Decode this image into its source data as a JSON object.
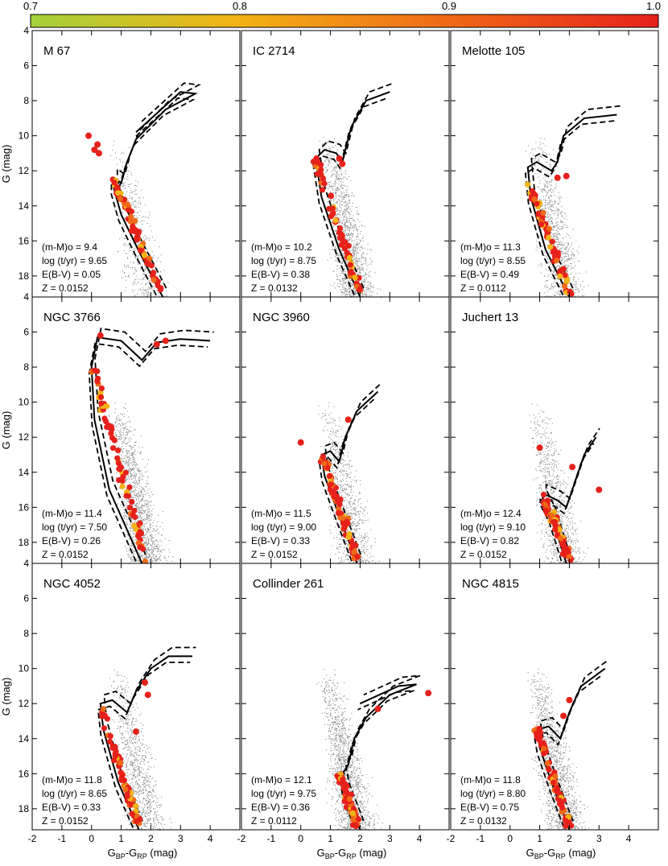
{
  "colorbar": {
    "min_label": "0.7",
    "tick_labels": [
      "0.7",
      "0.8",
      "0.9",
      "1.0"
    ],
    "tick_values": [
      0.7,
      0.8,
      0.9,
      1.0
    ],
    "range": [
      0.7,
      1.0
    ],
    "colors": [
      "#a4d13a",
      "#f2b316",
      "#ef6a17",
      "#e6211b"
    ]
  },
  "axes": {
    "xlabel": "G_BP-G_RP (mag)",
    "xlabel_main": "G",
    "xlabel_sub1": "BP",
    "xlabel_dash": "-G",
    "xlabel_sub2": "RP",
    "xlabel_unit": " (mag)",
    "ylabel": "G (mag)",
    "xlim": [
      -2,
      5
    ],
    "ylim": [
      19.2,
      4
    ],
    "xticks": [
      -2,
      -1,
      0,
      1,
      2,
      3,
      4
    ],
    "yticks": [
      4,
      6,
      8,
      10,
      12,
      14,
      16,
      18
    ]
  },
  "style": {
    "field_color": "#8a8a8a",
    "member_color": "#e6211b",
    "isochrone_color": "#000000"
  },
  "chart_data": [
    {
      "type": "scatter",
      "title": "M 67",
      "dm_label": "(m-M)o = 9.4",
      "age_label": "log (t/yr) = 9.65",
      "ebv_label": "E(B-V) = 0.05",
      "z_label": "Z = 0.0152",
      "dm": 9.4,
      "logt": 9.65,
      "ebv": 0.05,
      "z": 0.0152,
      "isochrone": [
        [
          2.4,
          19.2
        ],
        [
          1.6,
          16.6
        ],
        [
          1.0,
          14.5
        ],
        [
          0.75,
          13.0
        ],
        [
          0.75,
          12.4
        ],
        [
          1.0,
          12.7
        ],
        [
          1.2,
          11.5
        ],
        [
          1.5,
          10.2
        ],
        [
          2.5,
          8.5
        ],
        [
          3.5,
          7.6
        ],
        [
          3.0,
          7.5
        ],
        [
          1.5,
          9.8
        ]
      ],
      "members_ms": [
        [
          0.75,
          12.5
        ],
        [
          2.3,
          18.8
        ]
      ],
      "members_extra": [
        [
          -0.1,
          10.0
        ],
        [
          0.2,
          10.5
        ],
        [
          0.25,
          11.0
        ],
        [
          0.1,
          10.8
        ]
      ],
      "field_density": "low"
    },
    {
      "type": "scatter",
      "title": "IC 2714",
      "dm_label": "(m-M)o = 10.2",
      "age_label": "log (t/yr) = 8.75",
      "ebv_label": "E(B-V) = 0.38",
      "z_label": "Z = 0.0132",
      "dm": 10.2,
      "logt": 8.75,
      "ebv": 0.38,
      "z": 0.0132,
      "isochrone": [
        [
          2.0,
          19.2
        ],
        [
          1.3,
          16.5
        ],
        [
          0.7,
          13.5
        ],
        [
          0.5,
          11.3
        ],
        [
          0.8,
          10.8
        ],
        [
          1.2,
          11.0
        ],
        [
          1.4,
          11.5
        ],
        [
          1.7,
          9.5
        ],
        [
          2.2,
          8.0
        ],
        [
          3.0,
          7.5
        ]
      ],
      "members_ms": [
        [
          0.5,
          11.3
        ],
        [
          2.0,
          19.0
        ]
      ],
      "members_extra": [
        [
          1.3,
          11.3
        ],
        [
          1.4,
          11.6
        ]
      ],
      "field_density": "high"
    },
    {
      "type": "scatter",
      "title": "Melotte 105",
      "dm_label": "(m-M)o = 11.3",
      "age_label": "log (t/yr) = 8.55",
      "ebv_label": "E(B-V) = 0.49",
      "z_label": "Z = 0.0112",
      "dm": 11.3,
      "logt": 8.55,
      "ebv": 0.49,
      "z": 0.0112,
      "isochrone": [
        [
          2.0,
          19.2
        ],
        [
          1.2,
          16.5
        ],
        [
          0.7,
          13.5
        ],
        [
          0.6,
          11.8
        ],
        [
          0.9,
          11.5
        ],
        [
          1.4,
          12.0
        ],
        [
          1.6,
          11.5
        ],
        [
          1.8,
          10.0
        ],
        [
          2.5,
          9.0
        ],
        [
          3.6,
          8.8
        ]
      ],
      "members_ms": [
        [
          0.6,
          12.6
        ],
        [
          2.0,
          19.0
        ]
      ],
      "members_extra": [
        [
          1.9,
          12.3
        ],
        [
          1.6,
          12.4
        ]
      ],
      "field_density": "medium"
    },
    {
      "type": "scatter",
      "title": "NGC 3766",
      "dm_label": "(m-M)o = 11.4",
      "age_label": "log (t/yr) = 7.50",
      "ebv_label": "E(B-V) = 0.26",
      "z_label": "Z = 0.0152",
      "dm": 11.4,
      "logt": 7.5,
      "ebv": 0.26,
      "z": 0.0152,
      "isochrone": [
        [
          1.7,
          19.2
        ],
        [
          0.6,
          15.0
        ],
        [
          0.1,
          11.0
        ],
        [
          0.0,
          8.0
        ],
        [
          0.2,
          6.3
        ],
        [
          1.0,
          6.5
        ],
        [
          1.7,
          7.6
        ],
        [
          2.2,
          6.6
        ],
        [
          3.0,
          6.4
        ],
        [
          4.0,
          6.5
        ]
      ],
      "members_ms": [
        [
          0.05,
          8.0
        ],
        [
          1.8,
          19.0
        ]
      ],
      "members_extra": [
        [
          0.3,
          6.2
        ],
        [
          2.2,
          6.7
        ],
        [
          2.5,
          6.5
        ]
      ],
      "field_density": "high"
    },
    {
      "type": "scatter",
      "title": "NGC 3960",
      "dm_label": "(m-M)o = 11.5",
      "age_label": "log (t/yr) = 9.00",
      "ebv_label": "E(B-V) = 0.33",
      "z_label": "Z = 0.0152",
      "dm": 11.5,
      "logt": 9.0,
      "ebv": 0.33,
      "z": 0.0152,
      "isochrone": [
        [
          1.9,
          19.2
        ],
        [
          1.3,
          16.5
        ],
        [
          0.8,
          14.2
        ],
        [
          0.7,
          13.0
        ],
        [
          1.0,
          12.8
        ],
        [
          1.3,
          13.4
        ],
        [
          1.5,
          12.0
        ],
        [
          1.9,
          10.5
        ],
        [
          2.6,
          9.4
        ]
      ],
      "members_ms": [
        [
          0.7,
          13.0
        ],
        [
          1.9,
          19.0
        ]
      ],
      "members_extra": [
        [
          0.0,
          12.3
        ],
        [
          1.6,
          11.0
        ]
      ],
      "field_density": "medium"
    },
    {
      "type": "scatter",
      "title": "Juchert 13",
      "dm_label": "(m-M)o = 12.4",
      "age_label": "log (t/yr) = 9.10",
      "ebv_label": "E(B-V) = 0.82",
      "z_label": "Z = 0.0152",
      "dm": 12.4,
      "logt": 9.1,
      "ebv": 0.82,
      "z": 0.0152,
      "isochrone": [
        [
          1.9,
          19.2
        ],
        [
          1.4,
          16.5
        ],
        [
          1.1,
          15.5
        ],
        [
          1.1,
          15.2
        ],
        [
          1.6,
          15.6
        ],
        [
          1.9,
          16.0
        ],
        [
          2.2,
          14.5
        ],
        [
          2.5,
          13.0
        ],
        [
          2.9,
          12.0
        ]
      ],
      "members_ms": [
        [
          1.1,
          15.3
        ],
        [
          2.0,
          19.0
        ]
      ],
      "members_extra": [
        [
          1.0,
          12.6
        ],
        [
          2.1,
          13.7
        ],
        [
          3.0,
          15.0
        ]
      ],
      "field_density": "medium"
    },
    {
      "type": "scatter",
      "title": "NGC 4052",
      "dm_label": "(m-M)o = 11.8",
      "age_label": "log (t/yr) = 8.65",
      "ebv_label": "E(B-V) = 0.33",
      "z_label": "Z = 0.0152",
      "dm": 11.8,
      "logt": 8.65,
      "ebv": 0.33,
      "z": 0.0152,
      "isochrone": [
        [
          1.6,
          19.2
        ],
        [
          0.9,
          16.5
        ],
        [
          0.4,
          13.5
        ],
        [
          0.3,
          12.0
        ],
        [
          0.7,
          11.8
        ],
        [
          1.2,
          12.5
        ],
        [
          1.5,
          11.3
        ],
        [
          2.0,
          10.0
        ],
        [
          2.6,
          9.3
        ],
        [
          3.4,
          9.3
        ]
      ],
      "members_ms": [
        [
          0.3,
          12.2
        ],
        [
          1.6,
          19.0
        ]
      ],
      "members_extra": [
        [
          1.8,
          10.8
        ],
        [
          1.9,
          11.5
        ],
        [
          1.5,
          13.6
        ]
      ],
      "field_density": "medium"
    },
    {
      "type": "scatter",
      "title": "Collinder 261",
      "dm_label": "(m-M)o = 12.1",
      "age_label": "log (t/yr) = 9.75",
      "ebv_label": "E(B-V) = 0.36",
      "z_label": "Z = 0.0112",
      "dm": 12.1,
      "logt": 9.75,
      "ebv": 0.36,
      "z": 0.0112,
      "isochrone": [
        [
          2.0,
          19.2
        ],
        [
          1.5,
          17.0
        ],
        [
          1.4,
          16.0
        ],
        [
          1.6,
          15.5
        ],
        [
          1.8,
          14.0
        ],
        [
          2.2,
          12.8
        ],
        [
          3.0,
          11.5
        ],
        [
          3.9,
          10.9
        ],
        [
          3.3,
          11.0
        ],
        [
          2.0,
          12.0
        ]
      ],
      "members_ms": [
        [
          1.3,
          16.0
        ],
        [
          1.9,
          19.0
        ]
      ],
      "members_extra": [
        [
          4.3,
          11.4
        ],
        [
          2.6,
          12.3
        ]
      ],
      "field_density": "high"
    },
    {
      "type": "scatter",
      "title": "NGC 4815",
      "dm_label": "(m-M)o = 11.8",
      "age_label": "log (t/yr) = 8.80",
      "ebv_label": "E(B-V) = 0.75",
      "z_label": "Z = 0.0132",
      "dm": 11.8,
      "logt": 8.8,
      "ebv": 0.75,
      "z": 0.0132,
      "isochrone": [
        [
          2.0,
          19.2
        ],
        [
          1.4,
          16.5
        ],
        [
          1.0,
          14.5
        ],
        [
          0.9,
          13.5
        ],
        [
          1.3,
          13.3
        ],
        [
          1.7,
          14.0
        ],
        [
          2.0,
          12.5
        ],
        [
          2.4,
          11.0
        ],
        [
          3.2,
          10.0
        ]
      ],
      "members_ms": [
        [
          0.9,
          13.5
        ],
        [
          2.0,
          19.0
        ]
      ],
      "members_extra": [
        [
          1.8,
          12.7
        ],
        [
          2.0,
          11.8
        ]
      ],
      "field_density": "high"
    }
  ]
}
